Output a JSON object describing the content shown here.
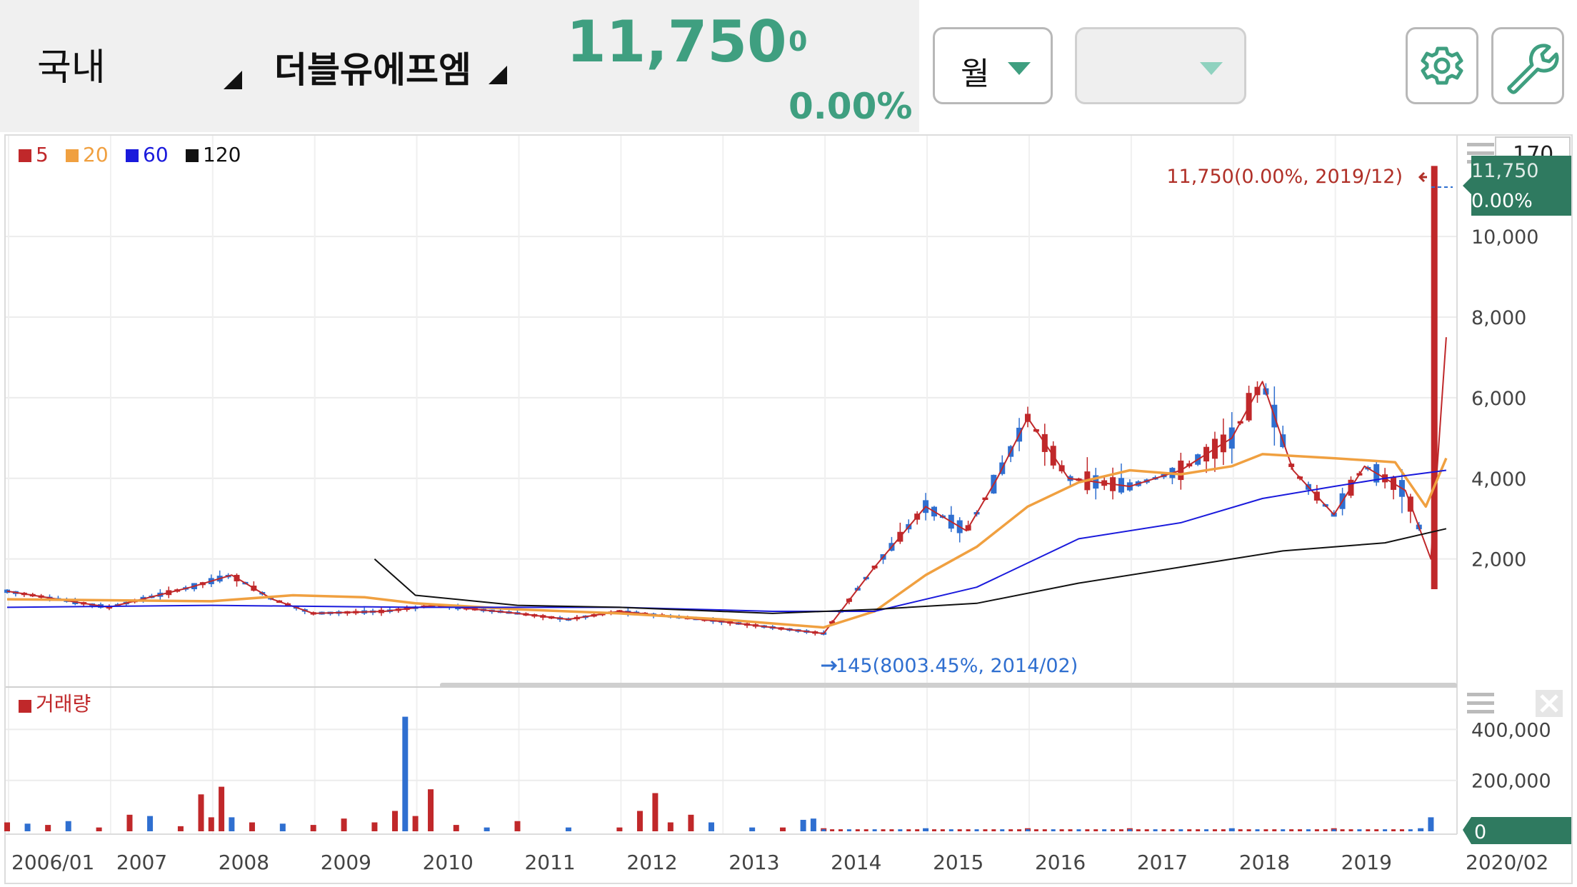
{
  "header": {
    "market_label": "국내",
    "stock_name": "더블유에프엠",
    "price": "11,750",
    "change": "0",
    "change_pct": "0.00%",
    "period_label": "월"
  },
  "icons": [
    "dropdown-triangle-icon",
    "chevron-down-icon",
    "gear-icon",
    "wrench-icon",
    "menu-icon",
    "close-icon",
    "arrow-left-icon",
    "arrow-right-icon"
  ],
  "colors": {
    "up": "#c0282a",
    "down": "#2f6fd0",
    "accent": "#3f9f80",
    "ma5": "#c0282a",
    "ma20": "#f0a040",
    "ma60": "#1a1adc",
    "ma120": "#111111"
  },
  "legend": [
    {
      "label": "5",
      "color": "#c0282a"
    },
    {
      "label": "20",
      "color": "#f0a040"
    },
    {
      "label": "60",
      "color": "#1a1adc"
    },
    {
      "label": "120",
      "color": "#111111"
    }
  ],
  "count_box": "170",
  "volume_legend": "거래량",
  "annotations": {
    "high": "11,750(0.00%, 2019/12)",
    "low": "145(8003.45%, 2014/02)"
  },
  "price_tag": {
    "value": "11,750",
    "pct": "0.00%"
  },
  "volume_tag": "0",
  "chart_data": {
    "type": "candlestick",
    "period": "monthly",
    "x_tick_labels": [
      "2006/01",
      "2007",
      "2008",
      "2009",
      "2010",
      "2011",
      "2012",
      "2013",
      "2014",
      "2015",
      "2016",
      "2017",
      "2018",
      "2019",
      "2020/02"
    ],
    "price_axis": {
      "ticks": [
        "2,000",
        "4,000",
        "6,000",
        "8,000",
        "10,000"
      ],
      "values": [
        2000,
        4000,
        6000,
        8000,
        10000
      ],
      "range": [
        -1000,
        12500
      ]
    },
    "volume_axis": {
      "ticks": [
        "200,000",
        "400,000"
      ],
      "values": [
        200000,
        400000
      ],
      "range": [
        0,
        460000
      ]
    },
    "series": [
      {
        "name": "5",
        "points": [
          [
            2006.0,
            1200
          ],
          [
            2007.0,
            800
          ],
          [
            2007.8,
            1300
          ],
          [
            2008.2,
            1600
          ],
          [
            2008.6,
            1000
          ],
          [
            2009.0,
            650
          ],
          [
            2009.7,
            700
          ],
          [
            2010.2,
            850
          ],
          [
            2011.0,
            650
          ],
          [
            2011.5,
            500
          ],
          [
            2012.0,
            700
          ],
          [
            2013.0,
            450
          ],
          [
            2014.0,
            150
          ],
          [
            2014.5,
            1800
          ],
          [
            2015.0,
            3300
          ],
          [
            2015.4,
            2700
          ],
          [
            2015.7,
            4000
          ],
          [
            2016.0,
            5500
          ],
          [
            2016.4,
            4000
          ],
          [
            2017.0,
            3800
          ],
          [
            2017.5,
            4200
          ],
          [
            2018.0,
            5000
          ],
          [
            2018.3,
            6400
          ],
          [
            2018.6,
            4200
          ],
          [
            2019.0,
            3100
          ],
          [
            2019.3,
            4300
          ],
          [
            2019.7,
            3700
          ],
          [
            2019.95,
            2000
          ],
          [
            2020.1,
            7500
          ]
        ]
      },
      {
        "name": "20",
        "points": [
          [
            2006.0,
            1000
          ],
          [
            2008.0,
            950
          ],
          [
            2008.8,
            1100
          ],
          [
            2009.5,
            1050
          ],
          [
            2010.0,
            900
          ],
          [
            2011.0,
            750
          ],
          [
            2012.0,
            650
          ],
          [
            2013.0,
            500
          ],
          [
            2014.0,
            300
          ],
          [
            2014.5,
            700
          ],
          [
            2015.0,
            1600
          ],
          [
            2015.5,
            2300
          ],
          [
            2016.0,
            3300
          ],
          [
            2016.5,
            3900
          ],
          [
            2017.0,
            4200
          ],
          [
            2017.5,
            4100
          ],
          [
            2018.0,
            4300
          ],
          [
            2018.3,
            4600
          ],
          [
            2019.0,
            4500
          ],
          [
            2019.6,
            4400
          ],
          [
            2019.9,
            3300
          ],
          [
            2020.1,
            4500
          ]
        ]
      },
      {
        "name": "60",
        "points": [
          [
            2006.0,
            800
          ],
          [
            2008.0,
            850
          ],
          [
            2010.0,
            800
          ],
          [
            2012.0,
            800
          ],
          [
            2013.5,
            700
          ],
          [
            2014.5,
            700
          ],
          [
            2015.5,
            1300
          ],
          [
            2016.5,
            2500
          ],
          [
            2017.5,
            2900
          ],
          [
            2018.3,
            3500
          ],
          [
            2019.0,
            3800
          ],
          [
            2019.5,
            4000
          ],
          [
            2020.1,
            4200
          ]
        ]
      },
      {
        "name": "120",
        "points": [
          [
            2009.6,
            2000
          ],
          [
            2010.0,
            1100
          ],
          [
            2011.0,
            850
          ],
          [
            2012.0,
            800
          ],
          [
            2013.5,
            650
          ],
          [
            2014.5,
            750
          ],
          [
            2015.5,
            900
          ],
          [
            2016.5,
            1400
          ],
          [
            2017.5,
            1800
          ],
          [
            2018.5,
            2200
          ],
          [
            2019.5,
            2400
          ],
          [
            2020.1,
            2750
          ]
        ]
      }
    ],
    "volume_bars": [
      [
        2006.0,
        35000,
        "up"
      ],
      [
        2006.2,
        30000,
        "down"
      ],
      [
        2006.4,
        25000,
        "up"
      ],
      [
        2006.6,
        40000,
        "down"
      ],
      [
        2006.9,
        15000,
        "up"
      ],
      [
        2007.2,
        65000,
        "up"
      ],
      [
        2007.4,
        60000,
        "down"
      ],
      [
        2007.7,
        20000,
        "up"
      ],
      [
        2007.9,
        145000,
        "up"
      ],
      [
        2008.0,
        55000,
        "up"
      ],
      [
        2008.1,
        175000,
        "up"
      ],
      [
        2008.2,
        55000,
        "down"
      ],
      [
        2008.4,
        35000,
        "up"
      ],
      [
        2008.7,
        30000,
        "down"
      ],
      [
        2009.0,
        25000,
        "up"
      ],
      [
        2009.3,
        50000,
        "up"
      ],
      [
        2009.6,
        35000,
        "up"
      ],
      [
        2009.8,
        80000,
        "up"
      ],
      [
        2009.9,
        450000,
        "down"
      ],
      [
        2010.0,
        60000,
        "up"
      ],
      [
        2010.15,
        165000,
        "up"
      ],
      [
        2010.4,
        25000,
        "up"
      ],
      [
        2010.7,
        15000,
        "down"
      ],
      [
        2011.0,
        40000,
        "up"
      ],
      [
        2011.5,
        15000,
        "down"
      ],
      [
        2012.0,
        15000,
        "up"
      ],
      [
        2012.2,
        80000,
        "up"
      ],
      [
        2012.35,
        150000,
        "up"
      ],
      [
        2012.5,
        35000,
        "up"
      ],
      [
        2012.7,
        65000,
        "up"
      ],
      [
        2012.9,
        35000,
        "down"
      ],
      [
        2013.3,
        15000,
        "down"
      ],
      [
        2013.6,
        15000,
        "up"
      ],
      [
        2013.8,
        45000,
        "down"
      ],
      [
        2013.9,
        50000,
        "down"
      ],
      [
        2014.0,
        12000,
        "up"
      ],
      [
        2015.0,
        12000,
        "down"
      ],
      [
        2016.0,
        12000,
        "up"
      ],
      [
        2017.0,
        12000,
        "up"
      ],
      [
        2018.0,
        12000,
        "down"
      ],
      [
        2019.0,
        12000,
        "up"
      ],
      [
        2019.85,
        12000,
        "down"
      ],
      [
        2019.95,
        55000,
        "down"
      ]
    ]
  }
}
